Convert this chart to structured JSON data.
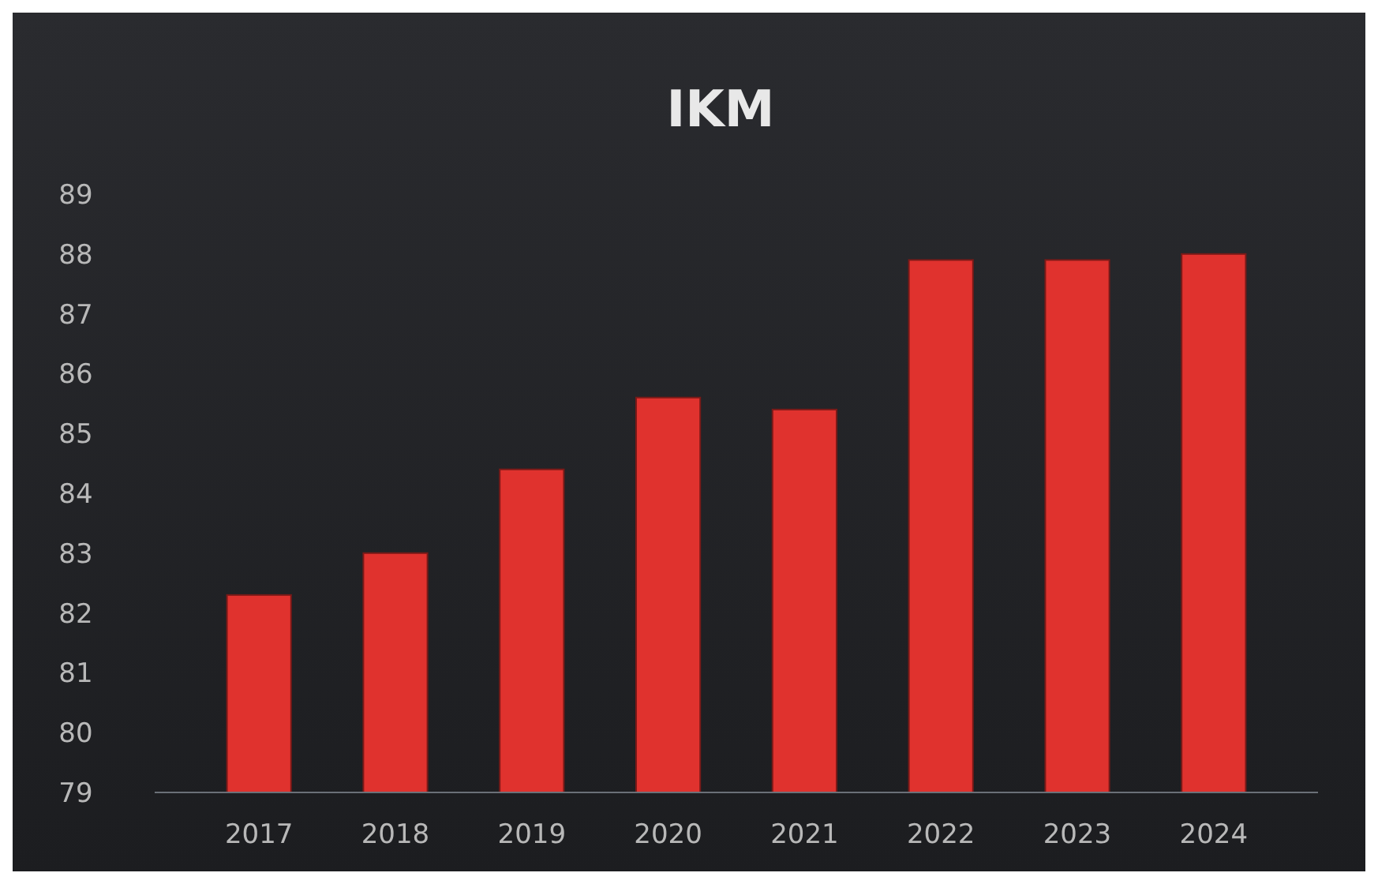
{
  "chart_data": {
    "type": "bar",
    "title": "IKM",
    "categories": [
      "2017",
      "2018",
      "2019",
      "2020",
      "2021",
      "2022",
      "2023",
      "2024"
    ],
    "values": [
      82.3,
      83.0,
      84.4,
      85.6,
      85.4,
      87.9,
      87.9,
      88.0
    ],
    "color": "#e0322e",
    "ylim": [
      79,
      89
    ],
    "yticks": [
      79,
      80,
      81,
      82,
      83,
      84,
      85,
      86,
      87,
      88,
      89
    ]
  }
}
